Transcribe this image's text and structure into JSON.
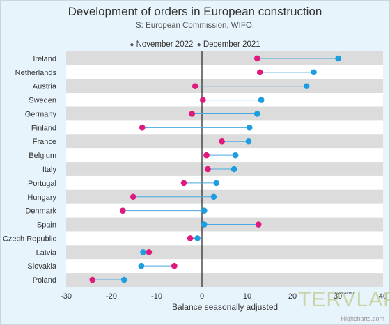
{
  "chart_data": {
    "type": "dumbbell",
    "title": "Development of orders in European construction",
    "subtitle": "S: European Commission, WIFO.",
    "xlabel": "Balance seasonally adjusted",
    "xlim": [
      -30,
      40
    ],
    "xticks": [
      -30,
      -20,
      -10,
      0,
      10,
      20,
      30,
      40
    ],
    "legend_position": "top-center",
    "grid": "alternating row bands",
    "categories": [
      "Ireland",
      "Netherlands",
      "Austria",
      "Sweden",
      "Germany",
      "Finland",
      "France",
      "Belgium",
      "Italy",
      "Portugal",
      "Hungary",
      "Denmark",
      "Spain",
      "Czech Republic",
      "Latvia",
      "Slovakia",
      "Poland"
    ],
    "series": [
      {
        "name": "November 2022",
        "color": "#e0197d",
        "values": [
          12.2,
          12.8,
          -1.5,
          0.2,
          -2.2,
          -13.2,
          4.4,
          1.0,
          1.3,
          -4.0,
          -15.2,
          -17.5,
          12.5,
          -2.6,
          -11.7,
          -6.1,
          -24.2
        ]
      },
      {
        "name": "December 2021",
        "color": "#1c9ee0",
        "values": [
          30.1,
          24.7,
          23.1,
          13.1,
          12.2,
          10.5,
          10.3,
          7.4,
          7.1,
          3.2,
          2.6,
          0.5,
          0.5,
          -1.0,
          -13.0,
          -13.4,
          -17.2
        ]
      }
    ]
  },
  "credits": "Highcharts.com",
  "watermark": "TERVLAP",
  "watermark_small": "TERVLAPHU"
}
